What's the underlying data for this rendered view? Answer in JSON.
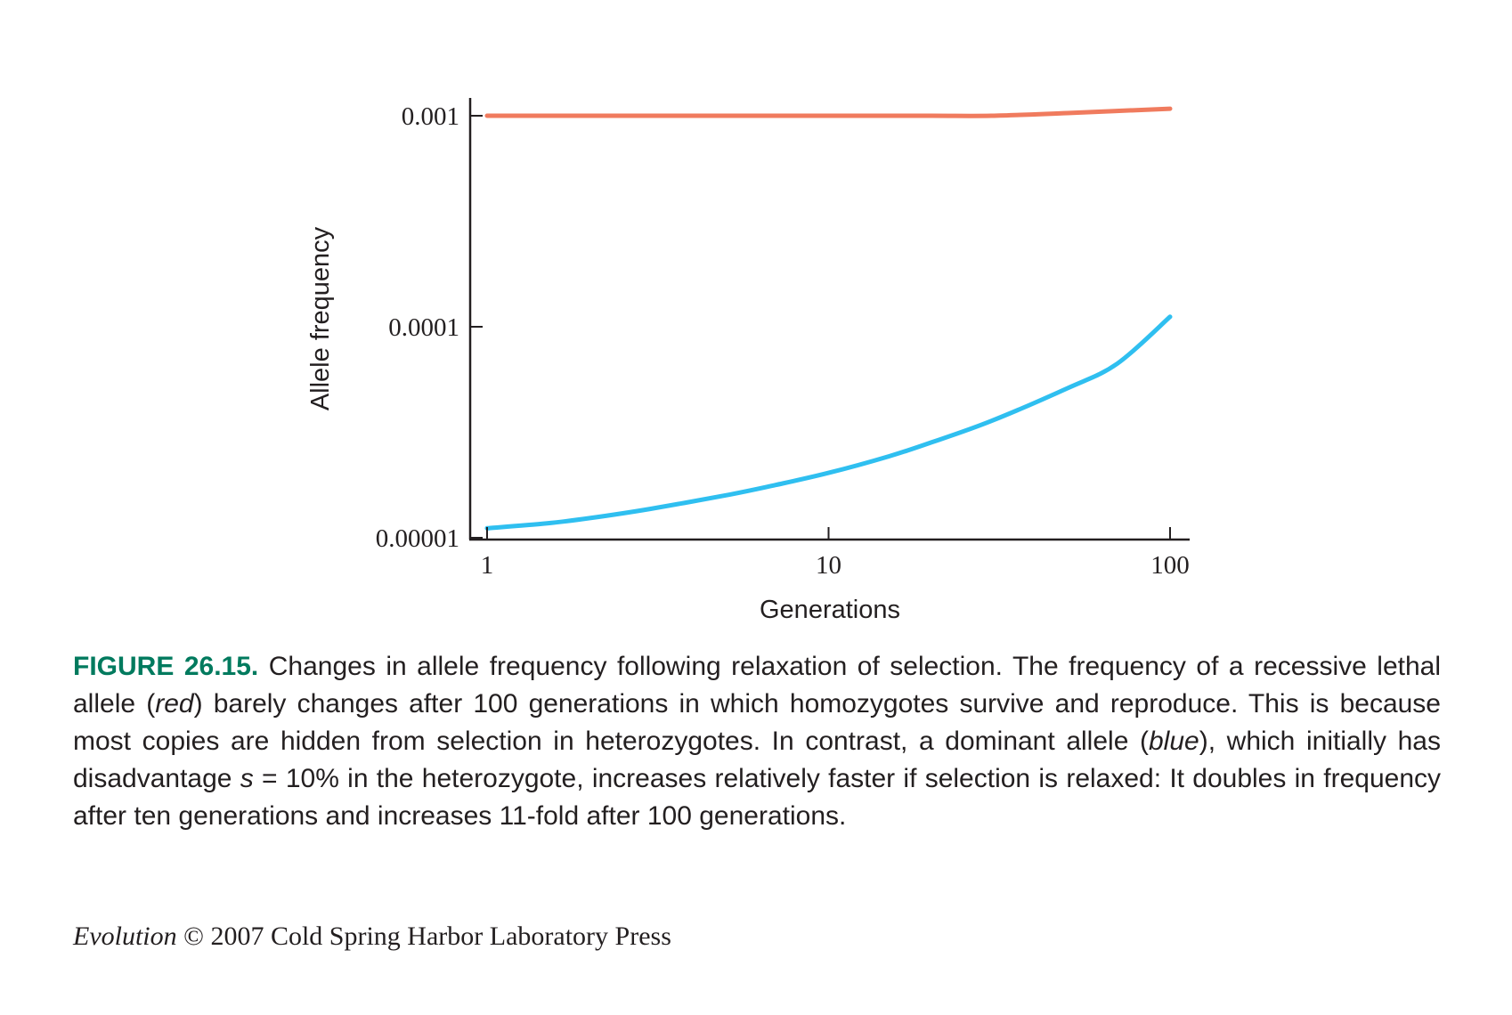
{
  "chart_data": {
    "type": "line",
    "xlabel": "Generations",
    "ylabel": "Allele frequency",
    "x_scale": "log",
    "y_scale": "log",
    "xlim": [
      1,
      100
    ],
    "ylim": [
      1e-05,
      0.001
    ],
    "x_ticks": [
      {
        "value": 1,
        "label": "1"
      },
      {
        "value": 10,
        "label": "10"
      },
      {
        "value": 100,
        "label": "100"
      }
    ],
    "y_ticks": [
      {
        "value": 0.001,
        "label": "0.001"
      },
      {
        "value": 0.0001,
        "label": "0.0001"
      },
      {
        "value": 1e-05,
        "label": "0.00001"
      }
    ],
    "grid": false,
    "legend": "none",
    "series": [
      {
        "color": "#f07b5e",
        "points": [
          [
            1,
            0.001
          ],
          [
            2,
            0.001
          ],
          [
            5,
            0.001
          ],
          [
            10,
            0.001
          ],
          [
            20,
            0.001
          ],
          [
            30,
            0.001
          ],
          [
            50,
            0.00103
          ],
          [
            100,
            0.00108
          ]
        ]
      },
      {
        "color": "#2fbff0",
        "points": [
          [
            1,
            1.11e-05
          ],
          [
            1.5,
            1.17e-05
          ],
          [
            2,
            1.24e-05
          ],
          [
            3,
            1.37e-05
          ],
          [
            5,
            1.59e-05
          ],
          [
            7,
            1.78e-05
          ],
          [
            10,
            2.03e-05
          ],
          [
            15,
            2.43e-05
          ],
          [
            20,
            2.83e-05
          ],
          [
            30,
            3.58e-05
          ],
          [
            50,
            5.11e-05
          ],
          [
            70,
            6.68e-05
          ],
          [
            100,
            0.0001115
          ]
        ]
      }
    ]
  },
  "caption": {
    "figure_label": "FIGURE 26.15.",
    "text_1": " Changes in allele frequency following relaxation of selection. The frequency of a recessive lethal allele (",
    "red_word": "red",
    "text_2": ") barely changes after 100 generations in which homozygotes survive and reproduce. This is because most copies are hidden from selection in heterozygotes. In contrast, a dominant allele (",
    "blue_word": "blue",
    "text_3": "), which initially has disadvantage ",
    "s_symbol": "s",
    "text_4": " = 10% in the heterozygote, increases relatively faster if selection is relaxed: It doubles in frequency after ten generations and increases 11-fold after 100 generations."
  },
  "credit": {
    "book_title": "Evolution",
    "rest": " © 2007 Cold Spring Harbor Laboratory Press"
  }
}
